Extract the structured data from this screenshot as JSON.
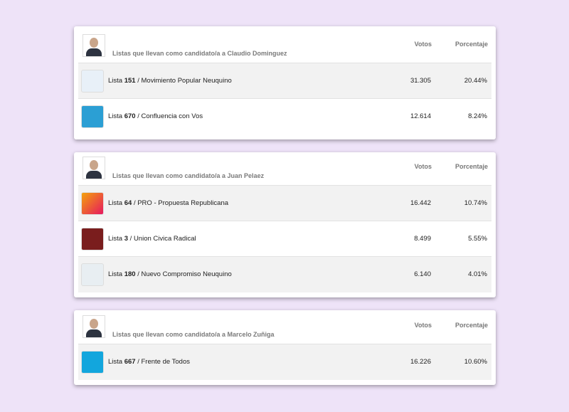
{
  "lista_label": "Lista",
  "separator": "/",
  "tables": [
    {
      "heading": "Listas que llevan como candidato/a a Claudio Dominguez",
      "columns": [
        "Votos",
        "Porcentaje"
      ],
      "rows": [
        {
          "number": "151",
          "name": "Movimiento Popular Neuquino",
          "votes": "31.305",
          "percent": "20.44%"
        },
        {
          "number": "670",
          "name": "Confluencia con Vos",
          "votes": "12.614",
          "percent": "8.24%"
        }
      ]
    },
    {
      "heading": "Listas que llevan como candidato/a a Juan Pelaez",
      "columns": [
        "Votos",
        "Porcentaje"
      ],
      "rows": [
        {
          "number": "64",
          "name": "PRO - Propuesta Republicana",
          "votes": "16.442",
          "percent": "10.74%"
        },
        {
          "number": "3",
          "name": "Union Civica Radical",
          "votes": "8.499",
          "percent": "5.55%"
        },
        {
          "number": "180",
          "name": "Nuevo Compromiso Neuquino",
          "votes": "6.140",
          "percent": "4.01%"
        }
      ]
    },
    {
      "heading": "Listas que llevan como candidato/a a Marcelo Zuñiga",
      "columns": [
        "Votos",
        "Porcentaje"
      ],
      "rows": [
        {
          "number": "667",
          "name": "Frente de Todos",
          "votes": "16.226",
          "percent": "10.60%"
        }
      ]
    }
  ]
}
